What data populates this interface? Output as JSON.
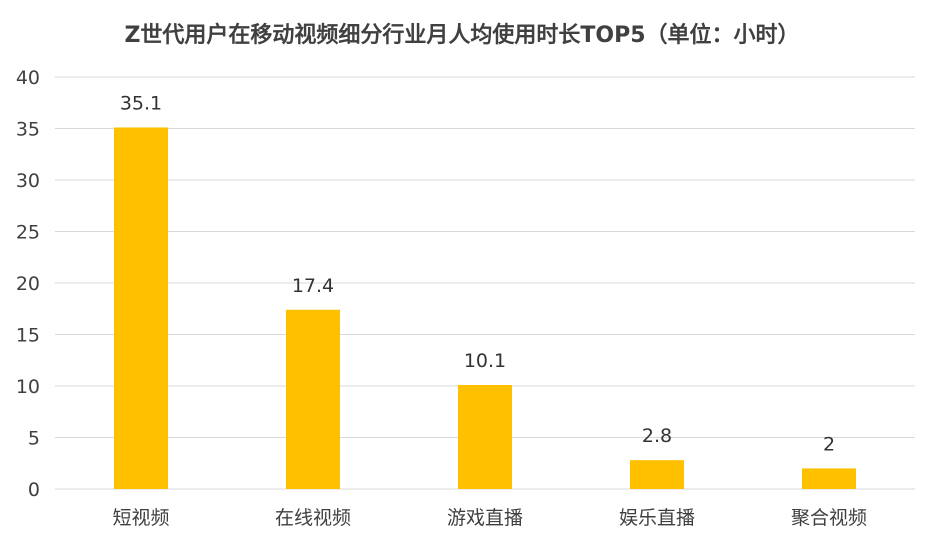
{
  "chart_data": {
    "type": "bar",
    "title": "Z世代用户在移动视频细分行业月人均使用时长TOP5（单位：小时）",
    "categories": [
      "短视频",
      "在线视频",
      "游戏直播",
      "娱乐直播",
      "聚合视频"
    ],
    "values": [
      35.1,
      17.4,
      10.1,
      2.8,
      2
    ],
    "data_labels": [
      "35.1",
      "17.4",
      "10.1",
      "2.8",
      "2"
    ],
    "ylim": [
      0,
      40
    ],
    "yticks": [
      0,
      5,
      10,
      15,
      20,
      25,
      30,
      35,
      40
    ],
    "ytick_labels": [
      "0",
      "5",
      "10",
      "15",
      "20",
      "25",
      "30",
      "35",
      "40"
    ],
    "grid": true,
    "bar_color": "#FFC000",
    "xlabel": "",
    "ylabel": ""
  }
}
